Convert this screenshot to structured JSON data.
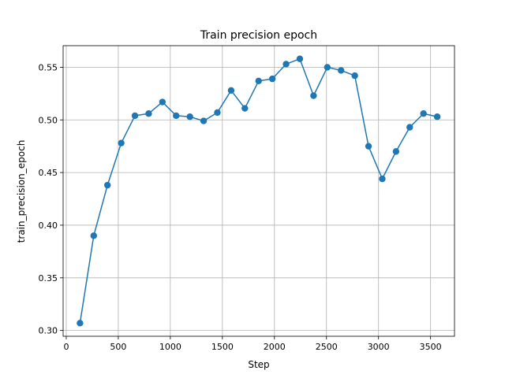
{
  "chart_data": {
    "type": "line",
    "title": "Train precision epoch",
    "xlabel": "Step",
    "ylabel": "train_precision_epoch",
    "xlim": [
      -30,
      3730
    ],
    "ylim": [
      0.2945,
      0.5705
    ],
    "xticks": [
      0,
      500,
      1000,
      1500,
      2000,
      2500,
      3000,
      3500
    ],
    "yticks": [
      0.3,
      0.35,
      0.4,
      0.45,
      0.5,
      0.55
    ],
    "ytick_labels": [
      "0.30",
      "0.35",
      "0.40",
      "0.45",
      "0.50",
      "0.55"
    ],
    "grid": true,
    "color": "#1f77b4",
    "marker": "circle",
    "series": [
      {
        "x": [
          132,
          264,
          396,
          528,
          660,
          792,
          924,
          1056,
          1188,
          1320,
          1452,
          1584,
          1716,
          1848,
          1980,
          2112,
          2244,
          2376,
          2508,
          2640,
          2772,
          2904,
          3036,
          3168,
          3300,
          3432,
          3564
        ],
        "y": [
          0.307,
          0.39,
          0.438,
          0.478,
          0.504,
          0.506,
          0.517,
          0.504,
          0.503,
          0.499,
          0.507,
          0.528,
          0.511,
          0.537,
          0.539,
          0.553,
          0.558,
          0.523,
          0.55,
          0.547,
          0.542,
          0.475,
          0.444,
          0.47,
          0.493,
          0.506,
          0.503
        ]
      }
    ]
  }
}
